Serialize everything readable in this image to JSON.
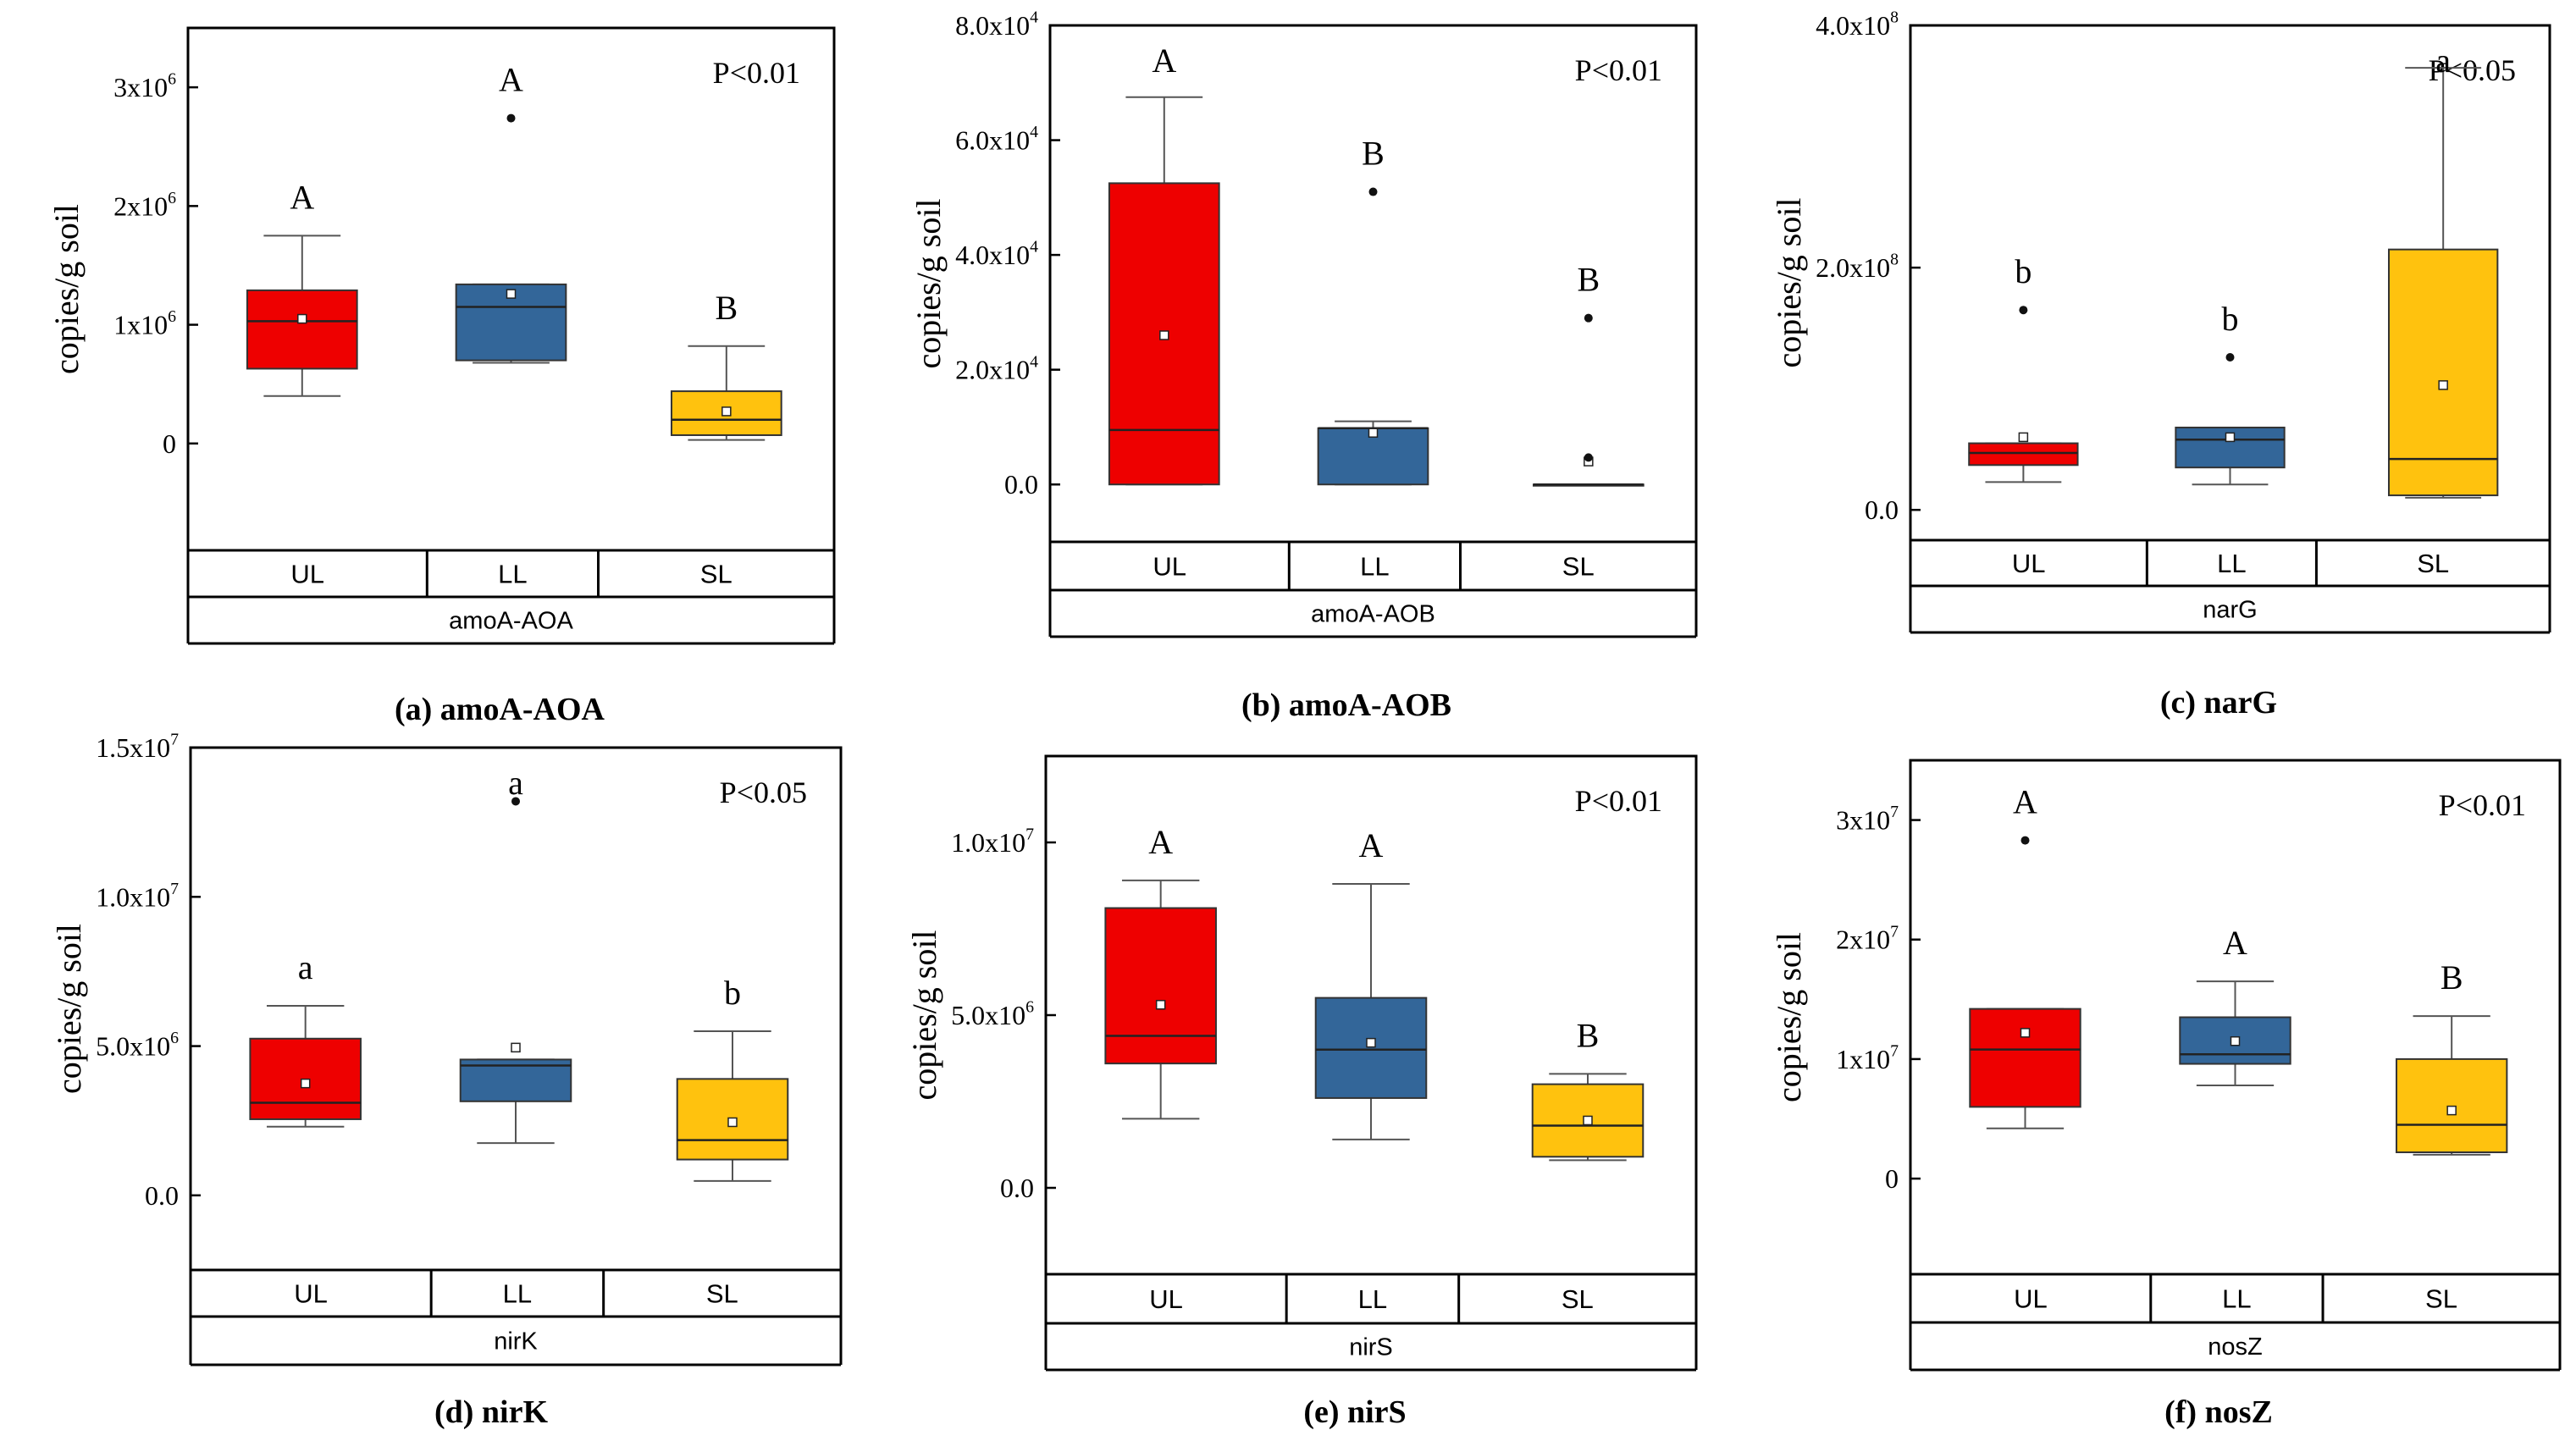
{
  "colors": {
    "UL": "#ee0000",
    "LL": "#336699",
    "SL": "#ffc20e"
  },
  "groups": [
    "UL",
    "LL",
    "SL"
  ],
  "chart_data": [
    {
      "type": "box",
      "caption": "(a)  amoA-AOA",
      "gene": "amoA-AOA",
      "ylabel": "copies/g soil",
      "pvalue": "P<0.01",
      "ylim": [
        -900000,
        3500000
      ],
      "ticks": [
        {
          "v": 0,
          "label": "0"
        },
        {
          "v": 1000000,
          "label": "1x10^6"
        },
        {
          "v": 2000000,
          "label": "2x10^6"
        },
        {
          "v": 3000000,
          "label": "3x10^6"
        }
      ],
      "boxes": [
        {
          "group": "UL",
          "whislo": 400000,
          "q1": 630000,
          "med": 1030000,
          "q3": 1290000,
          "whishi": 1750000,
          "mean": 1050000,
          "outliers": [],
          "letter": "A"
        },
        {
          "group": "LL",
          "whislo": 680000,
          "q1": 700000,
          "med": 1150000,
          "q3": 1340000,
          "whishi": 1340000,
          "mean": 1260000,
          "outliers": [
            2740000
          ],
          "letter": "A"
        },
        {
          "group": "SL",
          "whislo": 30000,
          "q1": 70000,
          "med": 200000,
          "q3": 440000,
          "whishi": 820000,
          "mean": 270000,
          "outliers": [],
          "letter": "B"
        }
      ]
    },
    {
      "type": "box",
      "caption": "(b)  amoA-AOB",
      "gene": "amoA-AOB",
      "ylabel": "copies/g soil",
      "pvalue": "P<0.01",
      "ylim": [
        -10000,
        80000
      ],
      "ticks": [
        {
          "v": 0,
          "label": "0.0"
        },
        {
          "v": 20000,
          "label": "2.0x10^4"
        },
        {
          "v": 40000,
          "label": "4.0x10^4"
        },
        {
          "v": 60000,
          "label": "6.0x10^4"
        },
        {
          "v": 80000,
          "label": "8.0x10^4"
        }
      ],
      "boxes": [
        {
          "group": "UL",
          "whislo": 0,
          "q1": 0,
          "med": 9500,
          "q3": 52500,
          "whishi": 67500,
          "mean": 26000,
          "outliers": [],
          "letter": "A"
        },
        {
          "group": "LL",
          "whislo": 0,
          "q1": 0,
          "med": 9800,
          "q3": 9800,
          "whishi": 11000,
          "mean": 9000,
          "outliers": [
            51000
          ],
          "letter": "B"
        },
        {
          "group": "SL",
          "whislo": 0,
          "q1": 0,
          "med": 0,
          "q3": 0,
          "whishi": 0,
          "mean": 4000,
          "outliers": [
            29000,
            4700
          ],
          "letter": "B"
        }
      ]
    },
    {
      "type": "box",
      "caption": "(c)  narG",
      "gene": "narG",
      "ylabel": "copies/g soil",
      "pvalue": "P<0.05",
      "ylim": [
        -25000000,
        400000000
      ],
      "ticks": [
        {
          "v": 0,
          "label": "0.0"
        },
        {
          "v": 200000000,
          "label": "2.0x10^8"
        },
        {
          "v": 400000000,
          "label": "4.0x10^8"
        }
      ],
      "boxes": [
        {
          "group": "UL",
          "whislo": 23000000,
          "q1": 37000000,
          "med": 47000000,
          "q3": 55000000,
          "whishi": 55000000,
          "mean": 60000000,
          "outliers": [
            165000000
          ],
          "letter": "b"
        },
        {
          "group": "LL",
          "whislo": 21000000,
          "q1": 35000000,
          "med": 58000000,
          "q3": 68000000,
          "whishi": 68000000,
          "mean": 60000000,
          "outliers": [
            126000000
          ],
          "letter": "b"
        },
        {
          "group": "SL",
          "whislo": 10000000,
          "q1": 12000000,
          "med": 42000000,
          "q3": 215000000,
          "whishi": 365000000,
          "mean": 103000000,
          "outliers": [],
          "letter": "a"
        }
      ]
    },
    {
      "type": "box",
      "caption": "(d)  nirK",
      "gene": "nirK",
      "ylabel": "copies/g soil",
      "pvalue": "P<0.05",
      "ylim": [
        -2500000,
        15000000
      ],
      "ticks": [
        {
          "v": 0,
          "label": "0.0"
        },
        {
          "v": 5000000,
          "label": "5.0x10^6"
        },
        {
          "v": 10000000,
          "label": "1.0x10^7"
        },
        {
          "v": 15000000,
          "label": "1.5x10^7"
        }
      ],
      "boxes": [
        {
          "group": "UL",
          "whislo": 2300000,
          "q1": 2550000,
          "med": 3100000,
          "q3": 5250000,
          "whishi": 6350000,
          "mean": 3750000,
          "outliers": [],
          "letter": "a"
        },
        {
          "group": "LL",
          "whislo": 1750000,
          "q1": 3150000,
          "med": 4350000,
          "q3": 4550000,
          "whishi": 4550000,
          "mean": 4950000,
          "outliers": [
            13200000
          ],
          "letter": "a"
        },
        {
          "group": "SL",
          "whislo": 480000,
          "q1": 1200000,
          "med": 1850000,
          "q3": 3900000,
          "whishi": 5500000,
          "mean": 2450000,
          "outliers": [],
          "letter": "b"
        }
      ]
    },
    {
      "type": "box",
      "caption": "(e)  nirS",
      "gene": "nirS",
      "ylabel": "copies/g soil",
      "pvalue": "P<0.01",
      "ylim": [
        -2500000,
        12500000
      ],
      "ticks": [
        {
          "v": 0,
          "label": "0.0"
        },
        {
          "v": 5000000,
          "label": "5.0x10^6"
        },
        {
          "v": 10000000,
          "label": "1.0x10^7"
        }
      ],
      "boxes": [
        {
          "group": "UL",
          "whislo": 2000000,
          "q1": 3600000,
          "med": 4400000,
          "q3": 8100000,
          "whishi": 8900000,
          "mean": 5300000,
          "outliers": [],
          "letter": "A"
        },
        {
          "group": "LL",
          "whislo": 1400000,
          "q1": 2600000,
          "med": 4000000,
          "q3": 5500000,
          "whishi": 8800000,
          "mean": 4200000,
          "outliers": [],
          "letter": "A"
        },
        {
          "group": "SL",
          "whislo": 800000,
          "q1": 900000,
          "med": 1800000,
          "q3": 3000000,
          "whishi": 3300000,
          "mean": 1950000,
          "outliers": [],
          "letter": "B"
        }
      ]
    },
    {
      "type": "box",
      "caption": "(f)  nosZ",
      "gene": "nosZ",
      "ylabel": "copies/g soil",
      "pvalue": "P<0.01",
      "ylim": [
        -8000000,
        35000000
      ],
      "ticks": [
        {
          "v": 0,
          "label": "0"
        },
        {
          "v": 10000000,
          "label": "1x10^7"
        },
        {
          "v": 20000000,
          "label": "2x10^7"
        },
        {
          "v": 30000000,
          "label": "3x10^7"
        }
      ],
      "boxes": [
        {
          "group": "UL",
          "whislo": 4200000,
          "q1": 6000000,
          "med": 10800000,
          "q3": 14200000,
          "whishi": 14200000,
          "mean": 12200000,
          "outliers": [
            28300000
          ],
          "letter": "A"
        },
        {
          "group": "LL",
          "whislo": 7800000,
          "q1": 9600000,
          "med": 10400000,
          "q3": 13500000,
          "whishi": 16500000,
          "mean": 11500000,
          "outliers": [],
          "letter": "A"
        },
        {
          "group": "SL",
          "whislo": 2000000,
          "q1": 2200000,
          "med": 4500000,
          "q3": 10000000,
          "whishi": 13600000,
          "mean": 5700000,
          "outliers": [],
          "letter": "B"
        }
      ]
    }
  ]
}
